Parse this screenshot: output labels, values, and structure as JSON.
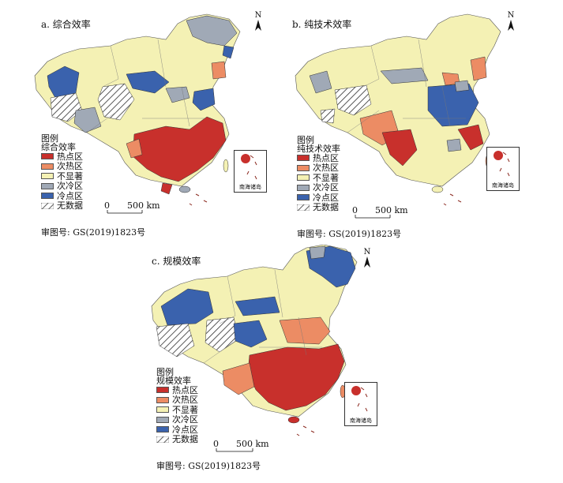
{
  "panels": [
    {
      "title": "a. 综合效率",
      "legend_title": "图例",
      "legend_subtitle": "综合效率",
      "approval": "审图号: GS(2019)1823号"
    },
    {
      "title": "b. 纯技术效率",
      "legend_title": "图例",
      "legend_subtitle": "纯技术效率",
      "approval": "审图号: GS(2019)1823号"
    },
    {
      "title": "c. 规模效率",
      "legend_title": "图例",
      "legend_subtitle": "规模效率",
      "approval": "审图号: GS(2019)1823号"
    }
  ],
  "legend_items": [
    {
      "label": "热点区",
      "color": "#c8302c"
    },
    {
      "label": "次热区",
      "color": "#ec8c64"
    },
    {
      "label": "不显著",
      "color": "#f4f1b4"
    },
    {
      "label": "次冷区",
      "color": "#a0a9b6"
    },
    {
      "label": "冷点区",
      "color": "#3a62ad"
    },
    {
      "label": "无数据",
      "color": "hatch"
    }
  ],
  "scale": {
    "zero": "0",
    "distance": "500 km"
  },
  "north_label": "N",
  "inset_label": "南海诸岛"
}
